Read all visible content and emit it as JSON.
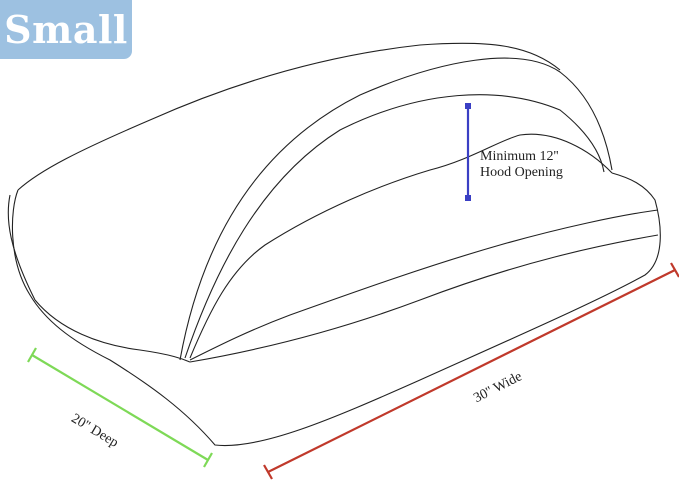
{
  "badge": {
    "label": "Small",
    "color": "#9dc1e1"
  },
  "dimensions": {
    "height": {
      "label_line1": "Minimum 12''",
      "label_line2": "Hood Opening",
      "color": "#3a3fc4"
    },
    "depth": {
      "label": "20'' Deep",
      "color": "#7ed957"
    },
    "width": {
      "label": "30'' Wide",
      "color": "#c0392b"
    }
  }
}
